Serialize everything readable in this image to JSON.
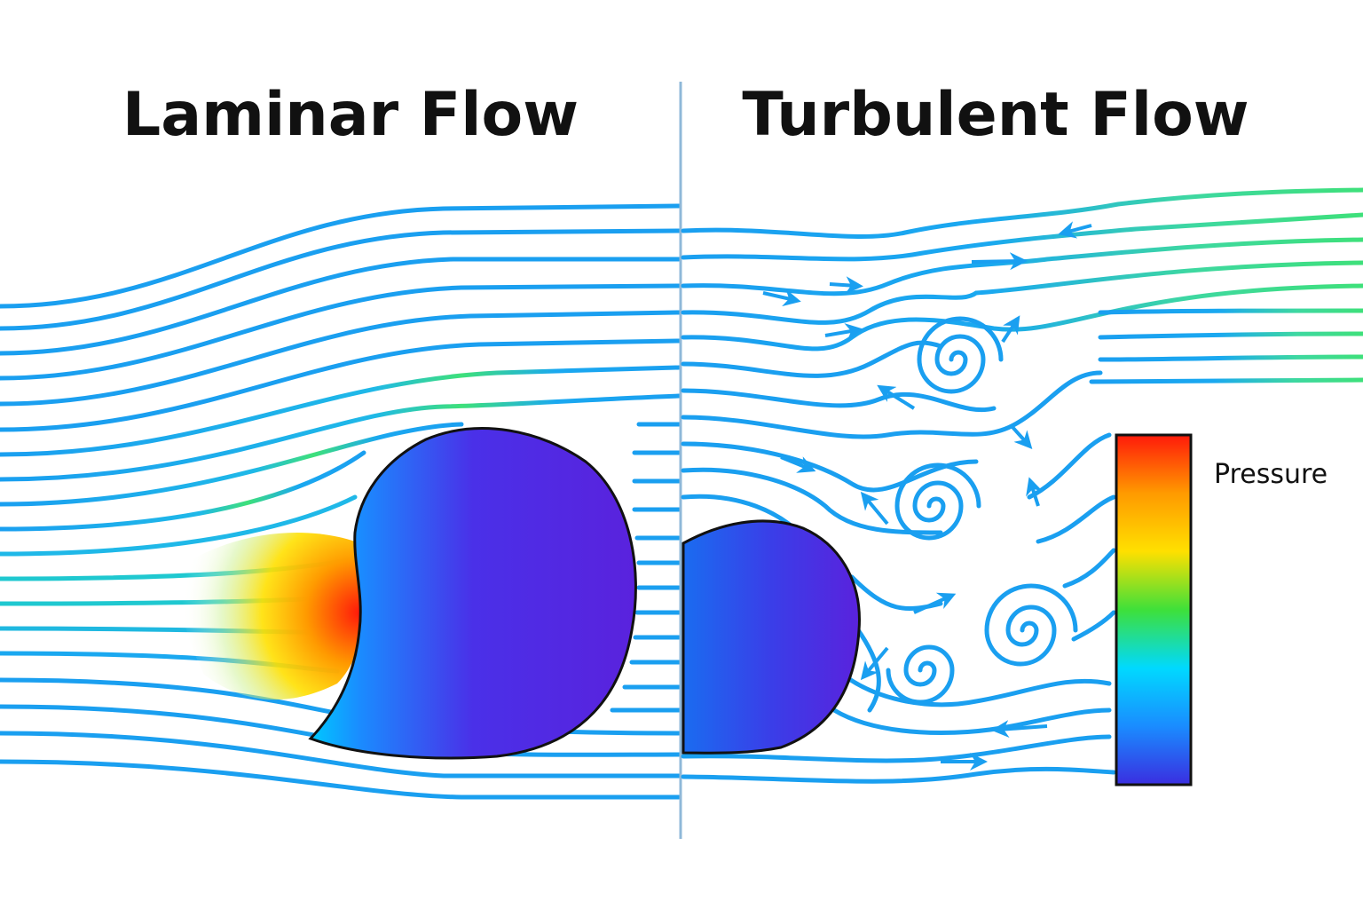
{
  "panels": {
    "laminar": {
      "title": "Laminar Flow"
    },
    "turbulent": {
      "title": "Turbulent Flow"
    }
  },
  "colorbar": {
    "label": "Pressure"
  },
  "colors": {
    "streamline": "#1a9ff0",
    "streamline_fast": "#3ee07a",
    "divider": "#8fb8d8",
    "body_low": "#5a22dd",
    "body_mid": "#2a7ff0",
    "pressure_high": "#ff1a0a",
    "outline": "#111111"
  },
  "colormap": [
    "#ff1a0a",
    "#ff9a00",
    "#ffe000",
    "#3ee03a",
    "#00d9ff",
    "#1a8cff",
    "#3a2ee0"
  ],
  "legend": {
    "position": "right"
  },
  "icons": {
    "flow_arrow": "arrowhead-icon",
    "vortex": "spiral-icon"
  }
}
